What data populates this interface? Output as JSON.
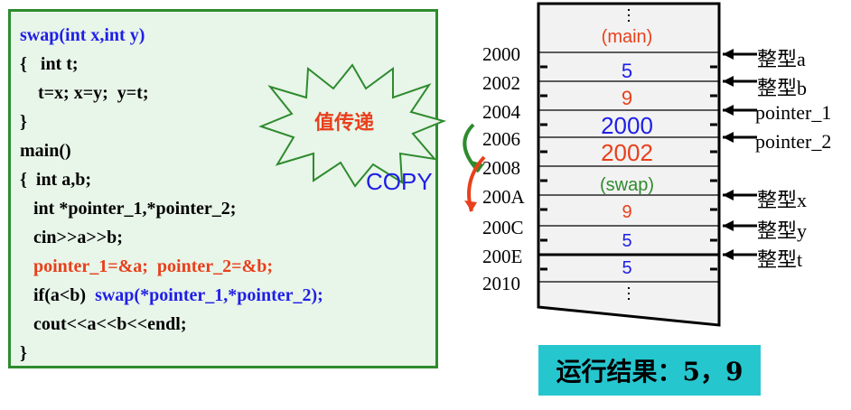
{
  "code": {
    "lines": [
      {
        "text": "swap(int x,int y)",
        "color": "#1f1fe6"
      },
      {
        "text": "{   int t;",
        "color": "#000000"
      },
      {
        "text": "    t=x; x=y;  y=t;",
        "color": "#000000"
      },
      {
        "text": "}",
        "color": "#000000"
      },
      {
        "text": "main()",
        "color": "#000000"
      },
      {
        "text": "{  int a,b;",
        "color": "#000000"
      },
      {
        "text": "   int *pointer_1,*pointer_2;",
        "color": "#000000"
      },
      {
        "text": "   cin>>a>>b;",
        "color": "#000000"
      },
      {
        "text": "   pointer_1=&a;  pointer_2=&b;",
        "color": "#e8401c"
      },
      {
        "text": "   if(a<b)  ",
        "color": "#000000",
        "extra": "swap(*pointer_1,*pointer_2);",
        "extra_color": "#1f1fe6"
      },
      {
        "text": "   cout<<a<<b<<endl;",
        "color": "#000000"
      },
      {
        "text": "}",
        "color": "#000000"
      }
    ]
  },
  "callout": {
    "label": "值传递",
    "copy": "COPY"
  },
  "memory": {
    "section_main": "(main)",
    "section_swap": "(swap)",
    "addresses": [
      "2000",
      "2002",
      "2004",
      "2006",
      "2008",
      "200A",
      "200C",
      "200E",
      "2010"
    ],
    "values": {
      "a": "5",
      "b": "9",
      "p1": "2000",
      "p2": "2002",
      "x": "9",
      "y": "5",
      "t": "5"
    },
    "labels": {
      "a": "整型a",
      "b": "整型b",
      "p1": "pointer_1",
      "p2": "pointer_2",
      "x": "整型x",
      "y": "整型y",
      "t": "整型t"
    }
  },
  "result": {
    "text": "运行结果：5，9"
  },
  "colors": {
    "panel_bg": "#e8f5e9",
    "panel_border": "#2e8b2e",
    "blue": "#1f1fe6",
    "red": "#e8401c",
    "result_bg": "#26c6cf",
    "memory_bg": "#f2f2f2"
  }
}
